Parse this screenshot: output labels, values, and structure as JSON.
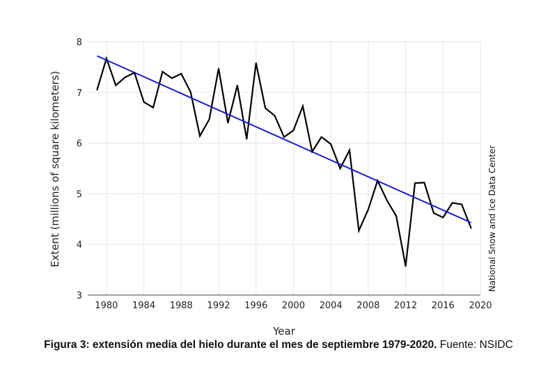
{
  "chart_data": {
    "type": "line",
    "xlabel": "Year",
    "ylabel": "Extent (millions of square kilometers)",
    "xlim": [
      1978,
      2020
    ],
    "ylim": [
      3,
      8
    ],
    "x_ticks": [
      1980,
      1984,
      1988,
      1992,
      1996,
      2000,
      2004,
      2008,
      2012,
      2016,
      2020
    ],
    "y_ticks": [
      3,
      4,
      5,
      6,
      7,
      8
    ],
    "grid": true,
    "credit": "National Snow and Ice Data Center",
    "series": [
      {
        "x": [
          1979,
          1980,
          1981,
          1982,
          1983,
          1984,
          1985,
          1986,
          1987,
          1988,
          1989,
          1990,
          1991,
          1992,
          1993,
          1994,
          1995,
          1996,
          1997,
          1998,
          1999,
          2000,
          2001,
          2002,
          2003,
          2004,
          2005,
          2006,
          2007,
          2008,
          2009,
          2010,
          2011,
          2012,
          2013,
          2014,
          2015,
          2016,
          2017,
          2018,
          2019
        ],
        "values": [
          7.05,
          7.67,
          7.14,
          7.3,
          7.39,
          6.81,
          6.7,
          7.41,
          7.28,
          7.37,
          7.01,
          6.14,
          6.47,
          7.47,
          6.4,
          7.14,
          6.08,
          7.58,
          6.69,
          6.54,
          6.12,
          6.25,
          6.73,
          5.83,
          6.12,
          5.98,
          5.5,
          5.86,
          4.27,
          4.69,
          5.26,
          4.87,
          4.56,
          3.57,
          5.21,
          5.22,
          4.62,
          4.53,
          4.82,
          4.79,
          4.32
        ],
        "color": "#000000"
      },
      {
        "type": "trend",
        "x": [
          1979,
          2019
        ],
        "values": [
          7.72,
          4.43
        ],
        "color": "#1a1acc"
      }
    ]
  },
  "caption": {
    "bold": "Figura 3: extensión media del hielo durante el mes de septiembre 1979-2020.",
    "normal": " Fuente: NSIDC"
  }
}
